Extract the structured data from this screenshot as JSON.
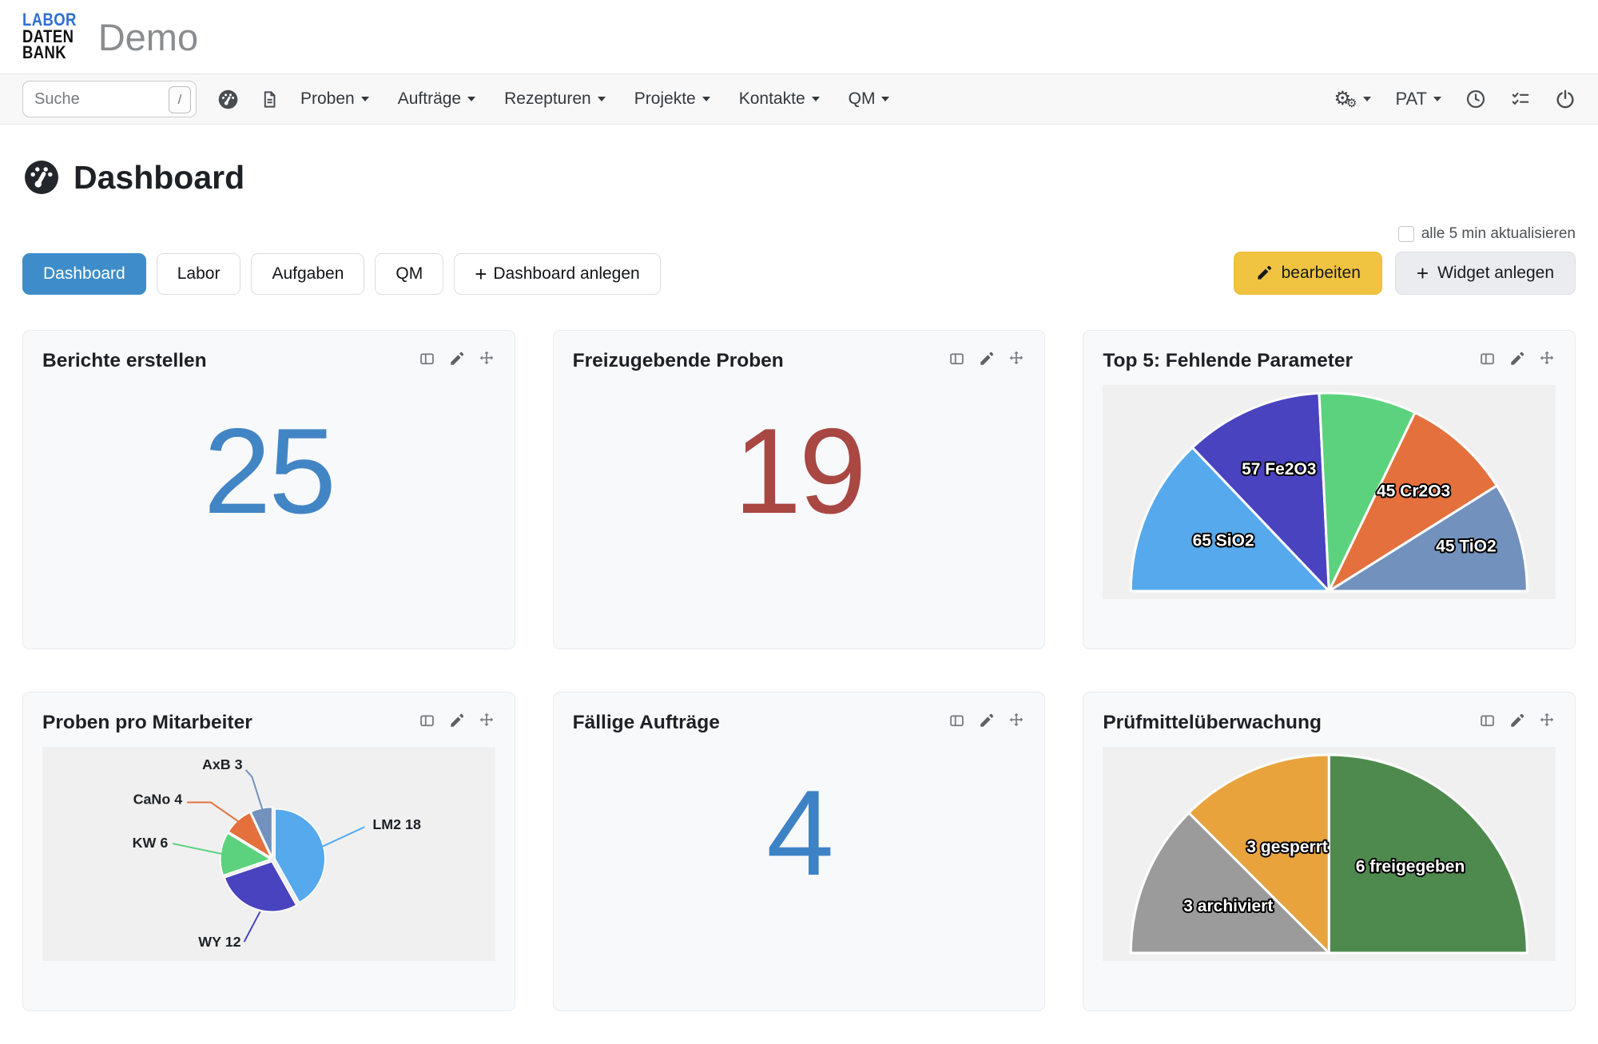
{
  "header": {
    "logo_lines": [
      "LABOR",
      "DATEN",
      "BANK"
    ],
    "app_title": "Demo"
  },
  "navbar": {
    "search": {
      "placeholder": "Suche",
      "shortcut_key": "/"
    },
    "links": [
      {
        "label": "Proben"
      },
      {
        "label": "Aufträge"
      },
      {
        "label": "Rezepturen"
      },
      {
        "label": "Projekte"
      },
      {
        "label": "Kontakte"
      },
      {
        "label": "QM"
      }
    ],
    "user_menu": "PAT"
  },
  "icons": {
    "plus": "+",
    "gear": "⚙"
  },
  "page": {
    "title": "Dashboard",
    "refresh_label": "alle 5 min aktualisieren",
    "edit_button": "bearbeiten",
    "add_widget_button": "Widget anlegen",
    "add_dashboard_button": "Dashboard anlegen",
    "tabs": [
      {
        "label": "Dashboard",
        "active": true
      },
      {
        "label": "Labor",
        "active": false
      },
      {
        "label": "Aufgaben",
        "active": false
      },
      {
        "label": "QM",
        "active": false
      }
    ]
  },
  "theme": {
    "active_tab_bg": "#3e8dca",
    "edit_button_bg": "#f0c341",
    "navbar_bg": "#f8f8f8",
    "card_bg": "#f8f9fb",
    "chart_area_bg": "#f0f0f1"
  },
  "widgets": [
    {
      "title": "Berichte erstellen",
      "kind": "number",
      "value": "25",
      "value_color": "#4285c4"
    },
    {
      "title": "Freizugebende Proben",
      "kind": "number",
      "value": "19",
      "value_color": "#a94743"
    },
    {
      "title": "Top 5: Fehlende Parameter",
      "kind": "chart",
      "chart_id": "top5"
    },
    {
      "title": "Proben pro Mitarbeiter",
      "kind": "chart",
      "chart_id": "mitarbeiter"
    },
    {
      "title": "Fällige Aufträge",
      "kind": "number",
      "value": "4",
      "value_color": "#3e82c6"
    },
    {
      "title": "Prüfmittelüberwachung",
      "kind": "chart",
      "chart_id": "pruefmittel"
    }
  ],
  "chart_data": [
    {
      "id": "top5",
      "type": "pie",
      "variant": "semicircle",
      "title": "Top 5: Fehlende Parameter",
      "legend_position": "none",
      "series": [
        {
          "label": "65 SiO2",
          "value": 65,
          "color": "#55a9ec"
        },
        {
          "label": "57 Fe2O3",
          "value": 57,
          "color": "#4a43bf"
        },
        {
          "label": "",
          "value": 40,
          "color": "#5dd27e"
        },
        {
          "label": "45 Cr2O3",
          "value": 45,
          "color": "#e4703d"
        },
        {
          "label": "45 TiO2",
          "value": 45,
          "color": "#7291bd"
        }
      ]
    },
    {
      "id": "mitarbeiter",
      "type": "pie",
      "variant": "full",
      "title": "Proben pro Mitarbeiter",
      "legend_position": "external-labels",
      "series": [
        {
          "label": "LM2 18",
          "value": 18,
          "color": "#55a9ec"
        },
        {
          "label": "WY 12",
          "value": 12,
          "color": "#4a43bf"
        },
        {
          "label": "KW 6",
          "value": 6,
          "color": "#5dd27e"
        },
        {
          "label": "CaNo 4",
          "value": 4,
          "color": "#e4703d"
        },
        {
          "label": "AxB 3",
          "value": 3,
          "color": "#7291bd"
        }
      ]
    },
    {
      "id": "pruefmittel",
      "type": "pie",
      "variant": "semicircle",
      "title": "Prüfmittelüberwachung",
      "legend_position": "none",
      "series": [
        {
          "label": "3 archiviert",
          "value": 3,
          "color": "#9b9b9b"
        },
        {
          "label": "3 gesperrt",
          "value": 3,
          "color": "#e8a33d"
        },
        {
          "label": "6 freigegeben",
          "value": 6,
          "color": "#4e8a4e"
        }
      ]
    }
  ]
}
